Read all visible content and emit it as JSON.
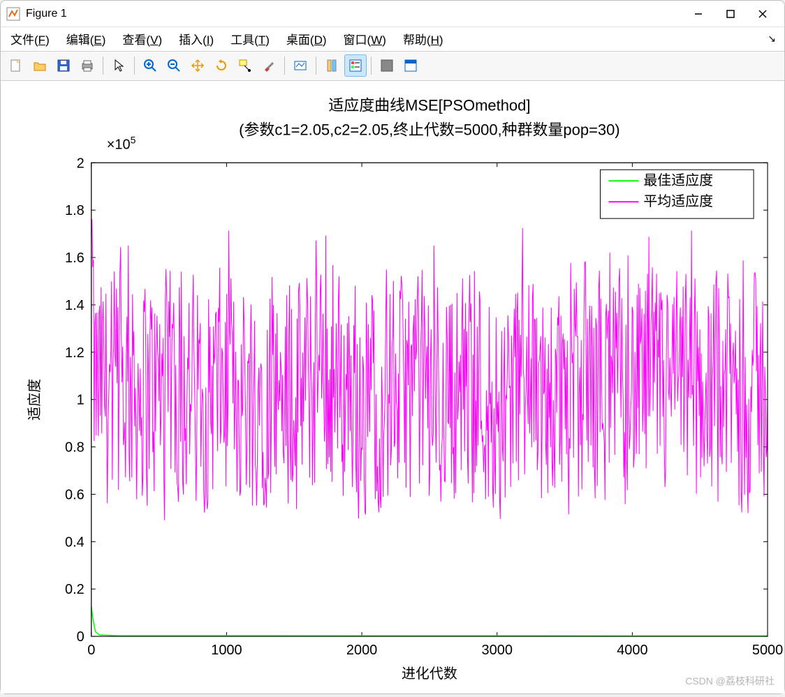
{
  "window": {
    "title": "Figure 1"
  },
  "menus": [
    {
      "label": "文件",
      "key": "F"
    },
    {
      "label": "编辑",
      "key": "E"
    },
    {
      "label": "查看",
      "key": "V"
    },
    {
      "label": "插入",
      "key": "I"
    },
    {
      "label": "工具",
      "key": "T"
    },
    {
      "label": "桌面",
      "key": "D"
    },
    {
      "label": "窗口",
      "key": "W"
    },
    {
      "label": "帮助",
      "key": "H"
    }
  ],
  "toolbar_icons": [
    "new",
    "open",
    "save",
    "print",
    "SEP",
    "pointer",
    "SEP",
    "zoom-in",
    "zoom-out",
    "pan",
    "rotate",
    "data-cursor",
    "brush",
    "SEP",
    "link",
    "SEP",
    "colorbar",
    "legend",
    "SEP",
    "hide",
    "dock"
  ],
  "chart": {
    "type": "line",
    "title_line1": "适应度曲线MSE[PSOmethod]",
    "title_line2": "(参数c1=2.05,c2=2.05,终止代数=5000,种群数量pop=30)",
    "exponent_label": "×10",
    "exponent_value": "5",
    "xlabel": "进化代数",
    "ylabel": "适应度",
    "xlim": [
      0,
      5000
    ],
    "ylim": [
      0,
      2
    ],
    "xticks": [
      0,
      1000,
      2000,
      3000,
      4000,
      5000
    ],
    "yticks": [
      0,
      0.2,
      0.4,
      0.6,
      0.8,
      1,
      1.2,
      1.4,
      1.6,
      1.8,
      2
    ],
    "background_color": "#ffffff",
    "axis_color": "#000000",
    "legend": {
      "items": [
        {
          "label": "最佳适应度",
          "color": "#00ff00"
        },
        {
          "label": "平均适应度",
          "color": "#ff00ff"
        }
      ],
      "position": "northeast"
    },
    "series": {
      "best": {
        "color": "#00ff00",
        "line_width": 1.5,
        "description": "starts ~0.13, drops to near 0 by iteration ~50, stays near 0"
      },
      "avg": {
        "color": "#ff00ff",
        "line_width": 1,
        "description": "noisy oscillation mostly between 0.5 and 1.7; early peak near 1.95",
        "n_points": 5000,
        "band_low": 0.55,
        "band_high": 1.65,
        "initial_peak": 1.95
      }
    }
  },
  "watermark": "CSDN @荔枝科研社",
  "colors": {
    "window_bg": "#ffffff",
    "toolbar_bg": "#f7f7f7",
    "border": "#c0c0c0"
  }
}
